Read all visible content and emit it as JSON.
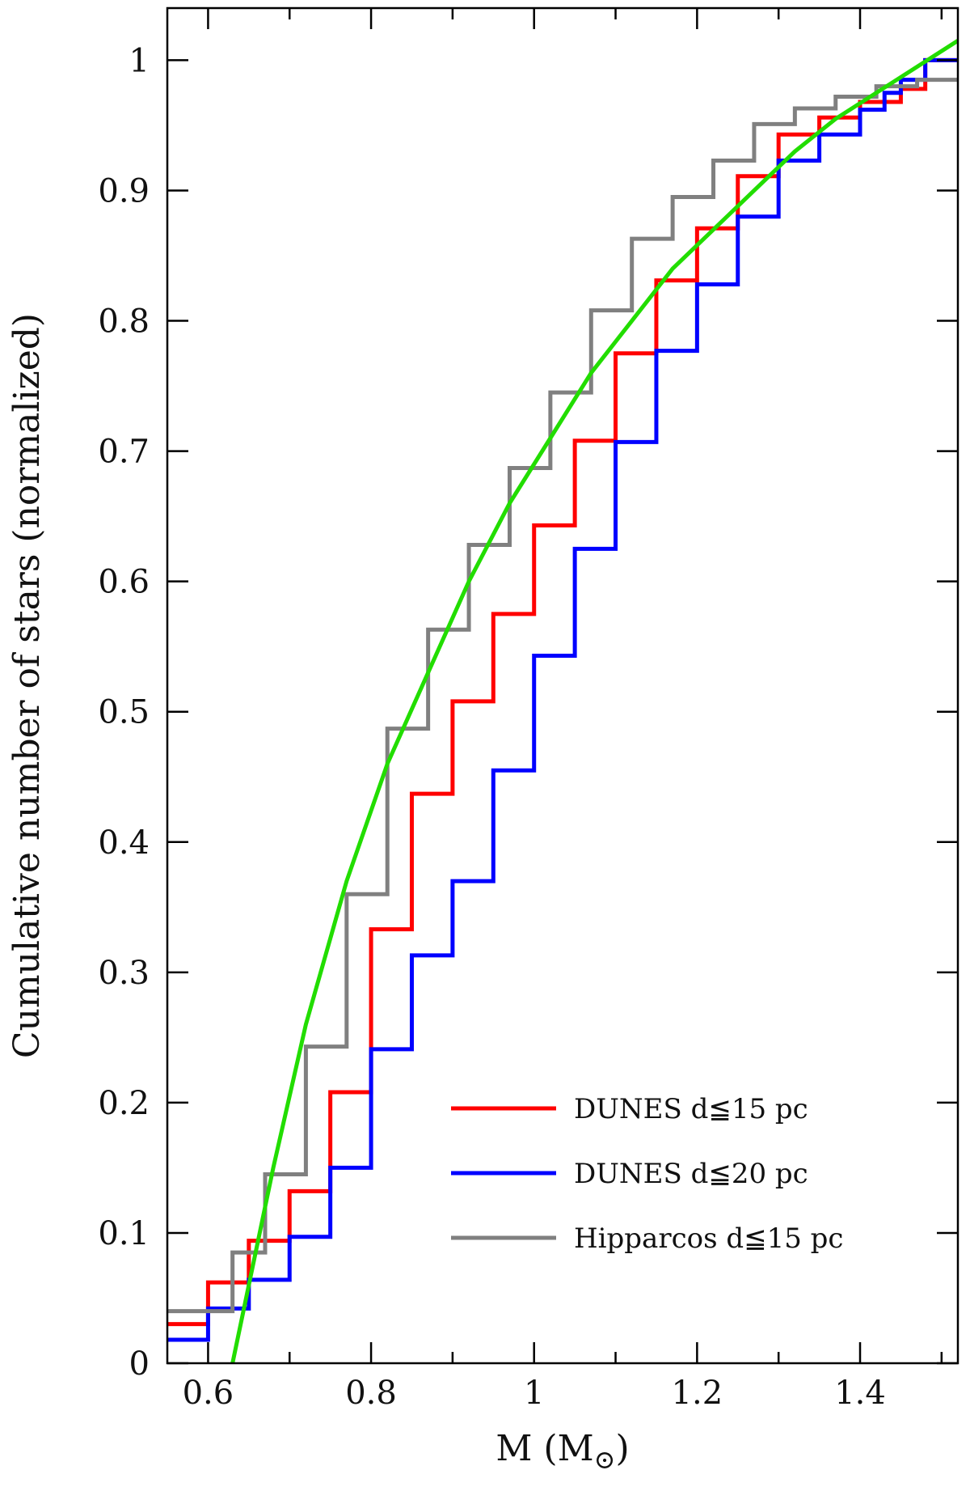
{
  "chart_data": {
    "type": "line",
    "xlabel": "M (M",
    "xlabel_sub": "⊙",
    "xlabel_close": ")",
    "ylabel": "Cumulative number of stars (normalized)",
    "xlim": [
      0.55,
      1.52
    ],
    "ylim": [
      0,
      1.04
    ],
    "x_ticks": [
      0.6,
      0.8,
      1,
      1.2,
      1.4
    ],
    "x_tick_labels": [
      "0.6",
      "0.8",
      "1",
      "1.2",
      "1.4"
    ],
    "x_minor_ticks": [
      0.7,
      0.9,
      1.1,
      1.3,
      1.5
    ],
    "y_ticks": [
      0,
      0.1,
      0.2,
      0.3,
      0.4,
      0.5,
      0.6,
      0.7,
      0.8,
      0.9,
      1
    ],
    "y_tick_labels": [
      "0",
      "0.1",
      "0.2",
      "0.3",
      "0.4",
      "0.5",
      "0.6",
      "0.7",
      "0.8",
      "0.9",
      "1"
    ],
    "grid": false,
    "legend_position": "bottom-right",
    "series": [
      {
        "name": "DUNES d≦15 pc",
        "color": "#ff0000",
        "style": "step",
        "x": [
          0.55,
          0.6,
          0.65,
          0.7,
          0.75,
          0.8,
          0.85,
          0.9,
          0.95,
          1.0,
          1.05,
          1.1,
          1.15,
          1.2,
          1.25,
          1.3,
          1.35,
          1.4,
          1.45,
          1.48,
          1.52
        ],
        "y": [
          0.03,
          0.062,
          0.094,
          0.132,
          0.208,
          0.333,
          0.437,
          0.508,
          0.575,
          0.643,
          0.708,
          0.775,
          0.831,
          0.871,
          0.911,
          0.943,
          0.956,
          0.968,
          0.978,
          1.0,
          1.0
        ]
      },
      {
        "name": "DUNES d≦20 pc",
        "color": "#0000ff",
        "style": "step",
        "x": [
          0.55,
          0.6,
          0.65,
          0.7,
          0.75,
          0.8,
          0.85,
          0.9,
          0.95,
          1.0,
          1.05,
          1.1,
          1.15,
          1.2,
          1.25,
          1.3,
          1.35,
          1.4,
          1.43,
          1.45,
          1.48,
          1.52
        ],
        "y": [
          0.018,
          0.042,
          0.064,
          0.097,
          0.15,
          0.241,
          0.313,
          0.37,
          0.455,
          0.543,
          0.625,
          0.707,
          0.777,
          0.828,
          0.88,
          0.923,
          0.943,
          0.962,
          0.975,
          0.985,
          1.0,
          1.0
        ]
      },
      {
        "name": "Hipparcos d≦15 pc",
        "color": "#808080",
        "style": "step",
        "x": [
          0.55,
          0.59,
          0.63,
          0.67,
          0.72,
          0.77,
          0.82,
          0.87,
          0.92,
          0.97,
          1.02,
          1.07,
          1.12,
          1.17,
          1.22,
          1.27,
          1.32,
          1.37,
          1.42,
          1.47,
          1.52
        ],
        "y": [
          0.04,
          0.04,
          0.085,
          0.145,
          0.243,
          0.36,
          0.487,
          0.563,
          0.628,
          0.687,
          0.745,
          0.808,
          0.863,
          0.895,
          0.923,
          0.951,
          0.963,
          0.972,
          0.98,
          0.985,
          0.985
        ]
      },
      {
        "name": "",
        "color": "#22dd00",
        "style": "line",
        "x": [
          0.63,
          0.65,
          0.68,
          0.72,
          0.77,
          0.82,
          0.87,
          0.92,
          0.97,
          1.02,
          1.07,
          1.12,
          1.17,
          1.22,
          1.27,
          1.32,
          1.37,
          1.42,
          1.47,
          1.52
        ],
        "y": [
          0.0,
          0.06,
          0.15,
          0.26,
          0.37,
          0.46,
          0.53,
          0.6,
          0.66,
          0.71,
          0.76,
          0.8,
          0.84,
          0.87,
          0.9,
          0.93,
          0.955,
          0.975,
          0.995,
          1.015
        ]
      }
    ]
  }
}
